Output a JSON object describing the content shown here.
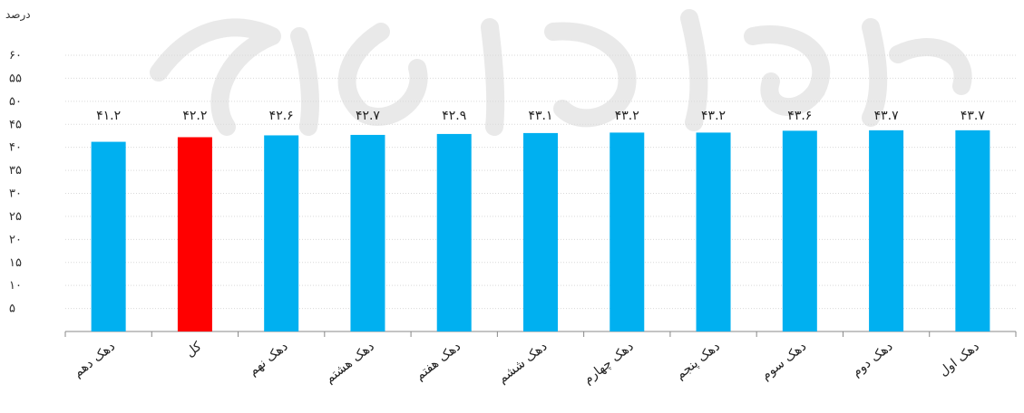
{
  "chart_data": {
    "type": "bar",
    "ylabel": "درصد",
    "ylim": [
      0,
      60
    ],
    "yticks": [
      "۵",
      "۱۰",
      "۱۵",
      "۲۰",
      "۲۵",
      "۳۰",
      "۳۵",
      "۴۰",
      "۴۵",
      "۵۰",
      "۵۵",
      "۶۰"
    ],
    "grid": true,
    "legend": "none",
    "categories": [
      "دهک دهم",
      "کل",
      "دهک نهم",
      "دهک هشتم",
      "دهک هفتم",
      "دهک ششم",
      "دهک چهارم",
      "دهک پنجم",
      "دهک سوم",
      "دهک دوم",
      "دهک اول"
    ],
    "values": [
      41.2,
      42.2,
      42.6,
      42.7,
      42.9,
      43.1,
      43.2,
      43.2,
      43.6,
      43.7,
      43.7
    ],
    "value_labels": [
      "۴۱.۲",
      "۴۲.۲",
      "۴۲.۶",
      "۴۲.۷",
      "۴۲.۹",
      "۴۳.۱",
      "۴۳.۲",
      "۴۳.۲",
      "۴۳.۶",
      "۴۳.۷",
      "۴۳.۷"
    ],
    "colors": {
      "bar": "#00b0f0",
      "highlight": "#ff0000",
      "highlight_category": "کل"
    }
  },
  "watermark": {
    "icon": "watermark-logo"
  }
}
